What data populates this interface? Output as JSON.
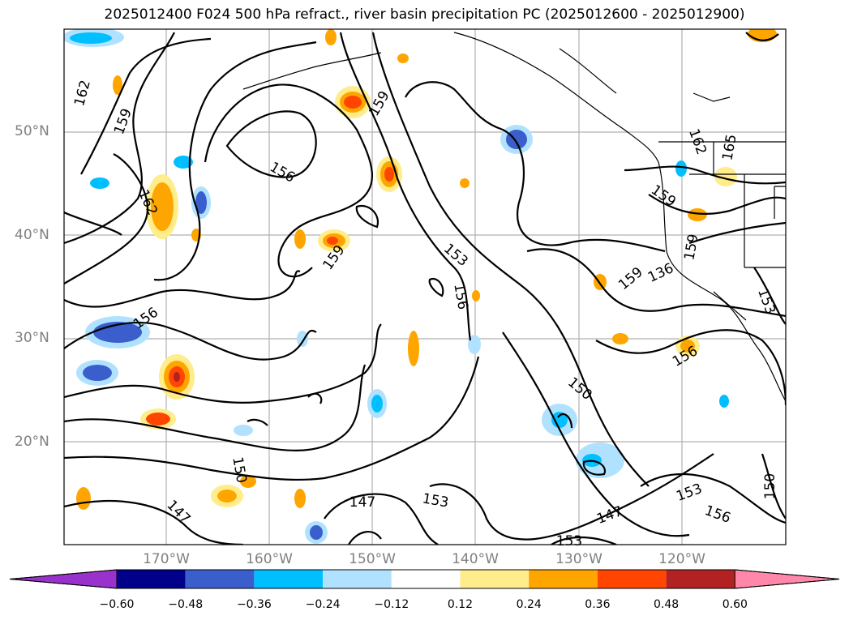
{
  "title": "2025012400 F024 500 hPa refract., river basin precipitation PC (2025012600 - 2025012900)",
  "map": {
    "lat_labels": [
      "50°N",
      "40°N",
      "30°N",
      "20°N"
    ],
    "lon_labels": [
      "170°W",
      "160°W",
      "150°W",
      "140°W",
      "130°W",
      "120°W"
    ],
    "grid": true,
    "contour_labels": [
      {
        "text": "162",
        "rot": -75
      },
      {
        "text": "159",
        "rot": -70
      },
      {
        "text": "162",
        "rot": 65
      },
      {
        "text": "156",
        "rot": 30
      },
      {
        "text": "159",
        "rot": -60
      },
      {
        "text": "159",
        "rot": -55
      },
      {
        "text": "156",
        "rot": -35
      },
      {
        "text": "153",
        "rot": 40
      },
      {
        "text": "156",
        "rot": 80
      },
      {
        "text": "150",
        "rot": 40
      },
      {
        "text": "147",
        "rot": 0
      },
      {
        "text": "153",
        "rot": 10
      },
      {
        "text": "150",
        "rot": 80
      },
      {
        "text": "147",
        "rot": 45
      },
      {
        "text": "147",
        "rot": -20
      },
      {
        "text": "153",
        "rot": 0
      },
      {
        "text": "159",
        "rot": -40
      },
      {
        "text": "136",
        "rot": -25
      },
      {
        "text": "159",
        "rot": 35
      },
      {
        "text": "162",
        "rot": 70
      },
      {
        "text": "165",
        "rot": -80
      },
      {
        "text": "159",
        "rot": -80
      },
      {
        "text": "153",
        "rot": 70
      },
      {
        "text": "156",
        "rot": -30
      },
      {
        "text": "153",
        "rot": -20
      },
      {
        "text": "156",
        "rot": 20
      },
      {
        "text": "150",
        "rot": -90
      }
    ]
  },
  "colorbar": {
    "colors": [
      "#9932cc",
      "#00008b",
      "#3a5fcd",
      "#00bfff",
      "#b0e2ff",
      "#ffffff",
      "#ffec8b",
      "#ffa500",
      "#ff4500",
      "#b22222",
      "#ff88aa"
    ],
    "tick_labels": [
      "−0.60",
      "−0.48",
      "−0.36",
      "−0.24",
      "−0.12",
      "0.12",
      "0.24",
      "0.36",
      "0.48",
      "0.60"
    ]
  }
}
